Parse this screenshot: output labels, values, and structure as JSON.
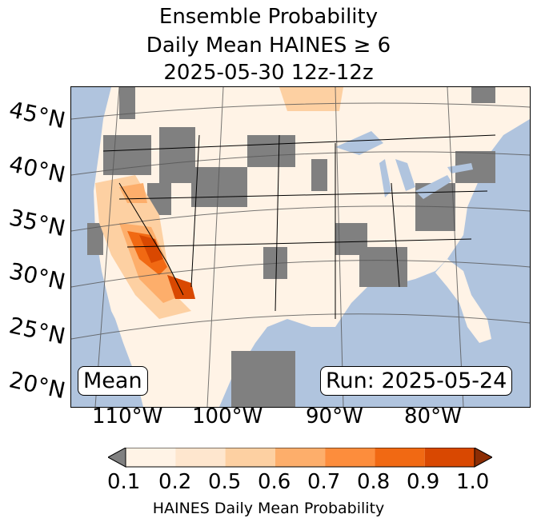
{
  "title": {
    "line1": "Ensemble Probability",
    "line2": "Daily Mean HAINES ≥ 6",
    "line3": "2025-05-30 12z-12z"
  },
  "map": {
    "lat_labels": [
      "45°N",
      "40°N",
      "35°N",
      "30°N",
      "25°N",
      "20°N"
    ],
    "lon_labels": [
      "110°W",
      "100°W",
      "90°W",
      "80°W"
    ],
    "left_box": "Mean",
    "right_box": "Run: 2025-05-24",
    "colors": {
      "ocean": "#b0c4de",
      "land_background": "#fff3e6",
      "no_data_gray": "#808080",
      "lakes": "#b0c4de"
    }
  },
  "colorbar": {
    "ticks": [
      "0.1",
      "0.2",
      "0.5",
      "0.6",
      "0.7",
      "0.8",
      "0.9",
      "1.0"
    ],
    "under_color": "#808080",
    "bins": [
      "#fff3e6",
      "#fee6ce",
      "#fdd0a2",
      "#fdae6b",
      "#fd8d3c",
      "#f16913",
      "#d94801"
    ],
    "over_color": "#8c2d04",
    "label": "HAINES Daily Mean Probability"
  }
}
